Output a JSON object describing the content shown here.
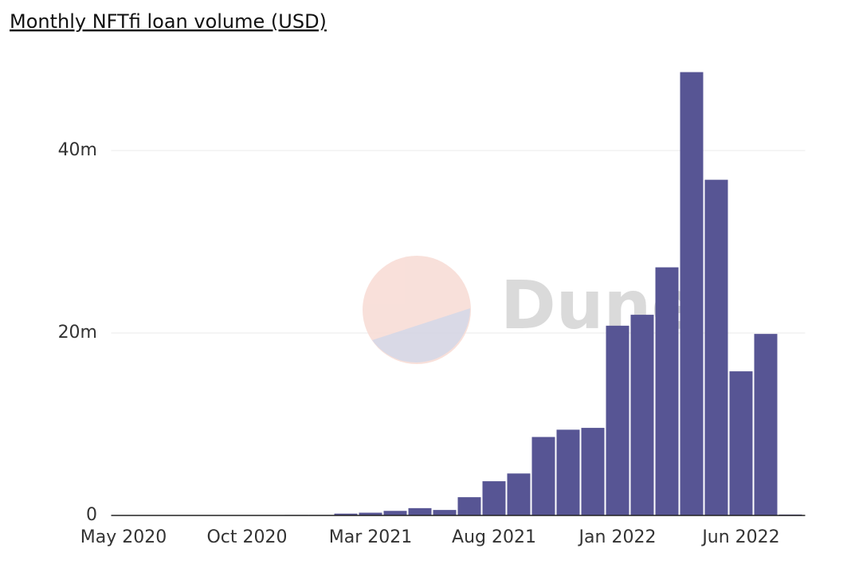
{
  "chart_data": {
    "type": "bar",
    "title": "Monthly NFTfi loan volume (USD)",
    "watermark": "Dune",
    "categories": [
      "May 2020",
      null,
      null,
      null,
      null,
      "Oct 2020",
      null,
      null,
      null,
      null,
      "Mar 2021",
      null,
      null,
      null,
      null,
      "Aug 2021",
      null,
      null,
      null,
      null,
      "Jan 2022",
      null,
      null,
      null,
      null,
      "Jun 2022",
      null,
      null
    ],
    "values": [
      20000,
      20000,
      20000,
      30000,
      30000,
      30000,
      30000,
      50000,
      50000,
      200000,
      300000,
      500000,
      800000,
      600000,
      2000000,
      3750000,
      4600000,
      8600000,
      9400000,
      9600000,
      20800000,
      22000000,
      27200000,
      48600000,
      36800000,
      15800000,
      19900000,
      100000
    ],
    "color": "#575594",
    "ylim": [
      0,
      50000000
    ],
    "yticks": [
      0,
      {
        "value": 20000000,
        "label": "20m"
      },
      {
        "value": 40000000,
        "label": "40m"
      }
    ],
    "grid": true
  }
}
